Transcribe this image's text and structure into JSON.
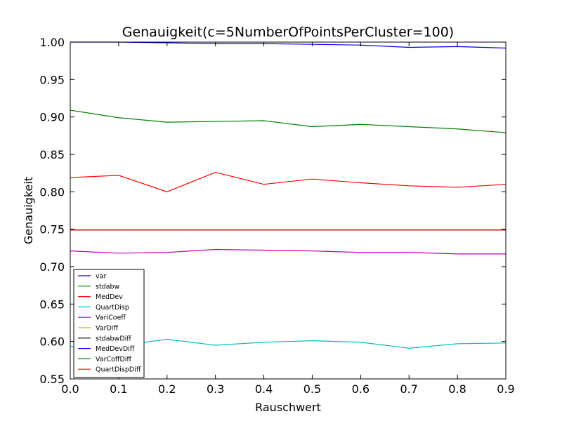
{
  "chart_data": {
    "type": "line",
    "title": "Genauigkeit(c=5NumberOfPointsPerCluster=100)",
    "xlabel": "Rauschwert",
    "ylabel": "Genauigkeit",
    "xlim": [
      0.0,
      0.9
    ],
    "ylim": [
      0.55,
      1.0
    ],
    "grid": false,
    "legend_position": "lower-left",
    "x": [
      0.0,
      0.1,
      0.2,
      0.3,
      0.4,
      0.5,
      0.6,
      0.7,
      0.8,
      0.9
    ],
    "x_ticks": [
      0.0,
      0.1,
      0.2,
      0.3,
      0.4,
      0.5,
      0.6,
      0.7,
      0.8,
      0.9
    ],
    "x_tick_labels": [
      "0.0",
      "0.1",
      "0.2",
      "0.3",
      "0.4",
      "0.5",
      "0.6",
      "0.7",
      "0.8",
      "0.9"
    ],
    "y_ticks": [
      0.55,
      0.6,
      0.65,
      0.7,
      0.75,
      0.8,
      0.85,
      0.9,
      0.95,
      1.0
    ],
    "y_tick_labels": [
      "0.55",
      "0.60",
      "0.65",
      "0.70",
      "0.75",
      "0.80",
      "0.85",
      "0.90",
      "0.95",
      "1.00"
    ],
    "series": [
      {
        "name": "var",
        "color": "#0000ff",
        "values": [
          1.0,
          1.0,
          0.999,
          0.998,
          0.998,
          0.997,
          0.996,
          0.993,
          0.994,
          0.992
        ]
      },
      {
        "name": "stdabw",
        "color": "#008000",
        "values": [
          0.909,
          0.899,
          0.893,
          0.894,
          0.895,
          0.887,
          0.89,
          0.887,
          0.884,
          0.879
        ]
      },
      {
        "name": "MedDev",
        "color": "#ff0000",
        "values": [
          0.819,
          0.822,
          0.8,
          0.826,
          0.81,
          0.817,
          0.812,
          0.808,
          0.806,
          0.81
        ]
      },
      {
        "name": "QuartDisp",
        "color": "#00bfbf",
        "values": [
          0.593,
          0.594,
          0.603,
          0.595,
          0.599,
          0.601,
          0.599,
          0.591,
          0.597,
          0.598
        ]
      },
      {
        "name": "VariCoeff",
        "color": "#bf00bf",
        "values": [
          0.721,
          0.718,
          0.719,
          0.723,
          0.722,
          0.721,
          0.719,
          0.719,
          0.717,
          0.717
        ]
      },
      {
        "name": "VarDiff",
        "color": "#bfbf00",
        "values": [
          0.749,
          0.749,
          0.749,
          0.749,
          0.749,
          0.749,
          0.749,
          0.749,
          0.749,
          0.749
        ]
      },
      {
        "name": "stdabwDiff",
        "color": "#000000",
        "values": [
          0.749,
          0.749,
          0.749,
          0.749,
          0.749,
          0.749,
          0.749,
          0.749,
          0.749,
          0.749
        ]
      },
      {
        "name": "MedDevDiff",
        "color": "#0000ff",
        "values": [
          0.749,
          0.749,
          0.749,
          0.749,
          0.749,
          0.749,
          0.749,
          0.749,
          0.749,
          0.749
        ]
      },
      {
        "name": "VarCoffDiff",
        "color": "#008000",
        "values": [
          0.749,
          0.749,
          0.749,
          0.749,
          0.749,
          0.749,
          0.749,
          0.749,
          0.749,
          0.749
        ]
      },
      {
        "name": "QuartDispDiff",
        "color": "#ff0000",
        "values": [
          0.749,
          0.749,
          0.749,
          0.749,
          0.749,
          0.749,
          0.749,
          0.749,
          0.749,
          0.749
        ]
      }
    ]
  }
}
